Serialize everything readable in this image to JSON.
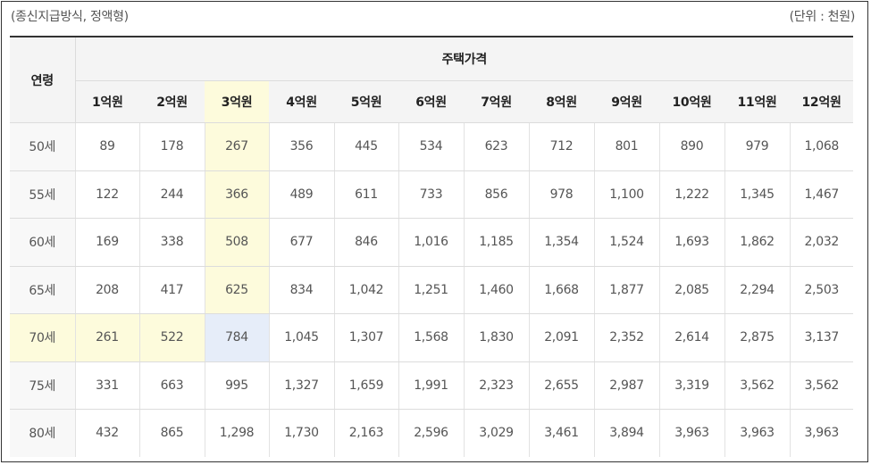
{
  "notes": {
    "left": "(종신지급방식, 정액형)",
    "right": "(단위 : 천원)"
  },
  "table": {
    "age_header": "연령",
    "price_header": "주택가격",
    "columns": [
      "1억원",
      "2억원",
      "3억원",
      "4억원",
      "5억원",
      "6억원",
      "7억원",
      "8억원",
      "9억원",
      "10억원",
      "11억원",
      "12억원"
    ],
    "rows": [
      {
        "age": "50세",
        "values": [
          "89",
          "178",
          "267",
          "356",
          "445",
          "534",
          "623",
          "712",
          "801",
          "890",
          "979",
          "1,068"
        ]
      },
      {
        "age": "55세",
        "values": [
          "122",
          "244",
          "366",
          "489",
          "611",
          "733",
          "856",
          "978",
          "1,100",
          "1,222",
          "1,345",
          "1,467"
        ]
      },
      {
        "age": "60세",
        "values": [
          "169",
          "338",
          "508",
          "677",
          "846",
          "1,016",
          "1,185",
          "1,354",
          "1,524",
          "1,693",
          "1,862",
          "2,032"
        ]
      },
      {
        "age": "65세",
        "values": [
          "208",
          "417",
          "625",
          "834",
          "1,042",
          "1,251",
          "1,460",
          "1,668",
          "1,877",
          "2,085",
          "2,294",
          "2,503"
        ]
      },
      {
        "age": "70세",
        "values": [
          "261",
          "522",
          "784",
          "1,045",
          "1,307",
          "1,568",
          "1,830",
          "2,091",
          "2,352",
          "2,614",
          "2,875",
          "3,137"
        ]
      },
      {
        "age": "75세",
        "values": [
          "331",
          "663",
          "995",
          "1,327",
          "1,659",
          "1,991",
          "2,323",
          "2,655",
          "2,987",
          "3,319",
          "3,562",
          "3,562"
        ]
      },
      {
        "age": "80세",
        "values": [
          "432",
          "865",
          "1,298",
          "1,730",
          "2,163",
          "2,596",
          "3,029",
          "3,461",
          "3,894",
          "3,963",
          "3,963",
          "3,963"
        ]
      }
    ],
    "highlight_colors": {
      "row_col": "#fdfbdc",
      "intersection": "#e6edf9"
    }
  }
}
